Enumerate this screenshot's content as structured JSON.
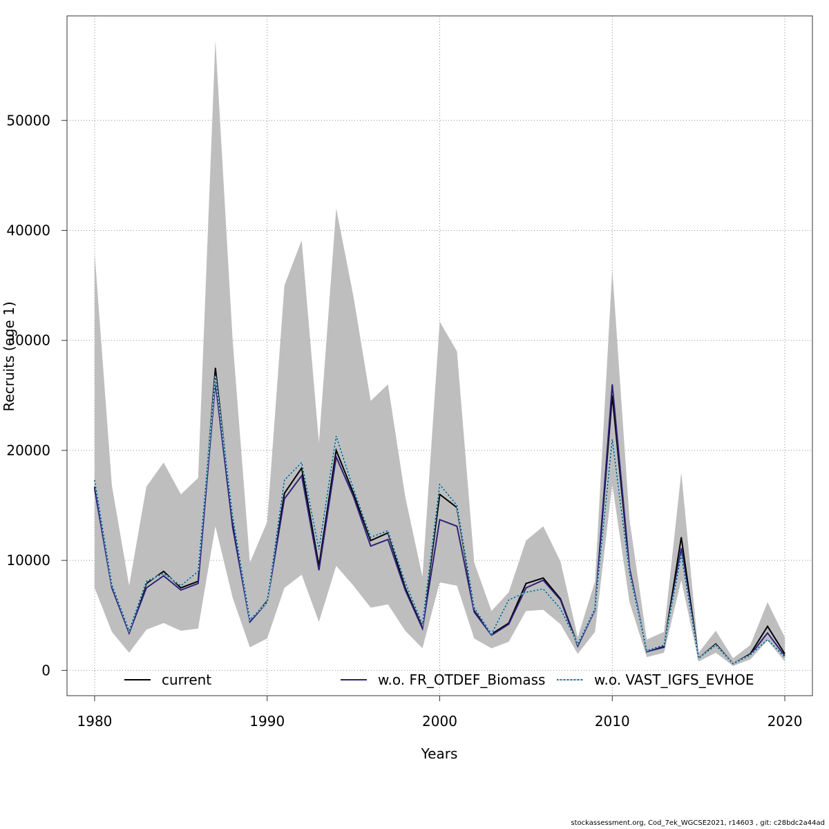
{
  "chart_data": {
    "type": "line",
    "xlabel": "Years",
    "ylabel": "Recruits (age 1)",
    "xlim": [
      1978.4,
      2021.6
    ],
    "ylim": [
      -2300,
      59500
    ],
    "x_ticks": [
      1980,
      1990,
      2000,
      2010,
      2020
    ],
    "y_ticks": [
      0,
      10000,
      20000,
      30000,
      40000,
      50000
    ],
    "grid": true,
    "legend_position": "bottom",
    "x": [
      1980,
      1981,
      1982,
      1983,
      1984,
      1985,
      1986,
      1987,
      1988,
      1989,
      1990,
      1991,
      1992,
      1993,
      1994,
      1995,
      1996,
      1997,
      1998,
      1999,
      2000,
      2001,
      2002,
      2003,
      2004,
      2005,
      2006,
      2007,
      2008,
      2009,
      2010,
      2011,
      2012,
      2013,
      2014,
      2015,
      2016,
      2017,
      2018,
      2019,
      2020
    ],
    "band": {
      "color": "#bebebe",
      "upper": [
        38000,
        16800,
        7700,
        16700,
        18900,
        16000,
        17500,
        57300,
        30000,
        9800,
        13500,
        35000,
        39100,
        20700,
        42000,
        34000,
        24500,
        26000,
        15800,
        8500,
        31700,
        29000,
        9800,
        5400,
        7100,
        11800,
        13100,
        9900,
        3000,
        8100,
        36500,
        13700,
        2800,
        3500,
        18000,
        1600,
        3600,
        1100,
        2300,
        6200,
        3000
      ],
      "lower": [
        7500,
        3500,
        1600,
        3700,
        4300,
        3600,
        3800,
        13100,
        6600,
        2100,
        2900,
        7500,
        8700,
        4400,
        9500,
        7700,
        5700,
        6000,
        3600,
        2000,
        8000,
        7700,
        2900,
        2000,
        2600,
        5400,
        5500,
        4200,
        1500,
        3500,
        16900,
        6200,
        1200,
        1600,
        8200,
        800,
        1600,
        400,
        1000,
        2700,
        800
      ]
    },
    "series": [
      {
        "name": "current",
        "color": "#000000",
        "dash": false,
        "values": [
          16700,
          7600,
          3400,
          7900,
          9000,
          7500,
          8100,
          27500,
          13500,
          4500,
          6300,
          16100,
          18400,
          9500,
          20000,
          16100,
          11800,
          12500,
          7500,
          3900,
          16000,
          14800,
          5400,
          3300,
          4300,
          7900,
          8400,
          6500,
          2300,
          5600,
          25000,
          9100,
          1700,
          2200,
          12100,
          1100,
          2400,
          600,
          1500,
          4000,
          1500
        ]
      },
      {
        "name": "w.o. FR_OTDEF_Biomass",
        "color": "#2e1f7a",
        "dash": false,
        "values": [
          16500,
          7500,
          3400,
          7500,
          8600,
          7300,
          7900,
          26200,
          13000,
          4400,
          6200,
          15600,
          17700,
          9100,
          19400,
          15800,
          11300,
          11900,
          7300,
          3800,
          13700,
          13100,
          5300,
          3200,
          4200,
          7500,
          8200,
          6400,
          2200,
          5500,
          26000,
          9300,
          1700,
          2100,
          11100,
          1100,
          2300,
          600,
          1400,
          3400,
          1300
        ]
      },
      {
        "name": "w.o. VAST_IGFS_EVHOE",
        "color": "#87ceeb",
        "dash": true,
        "values": [
          17300,
          7800,
          3600,
          8100,
          8800,
          7700,
          9000,
          26800,
          14000,
          4600,
          6200,
          17300,
          18900,
          11000,
          21300,
          16500,
          12100,
          12700,
          8000,
          4200,
          16900,
          15000,
          5700,
          3300,
          6400,
          7100,
          7400,
          5600,
          2400,
          5600,
          21000,
          8800,
          1800,
          2300,
          10500,
          1100,
          2300,
          600,
          1400,
          2800,
          1200
        ]
      }
    ],
    "footer": "stockassessment.org, Cod_7ek_WGCSE2021, r14603 , git: c28bdc2a44ad"
  }
}
